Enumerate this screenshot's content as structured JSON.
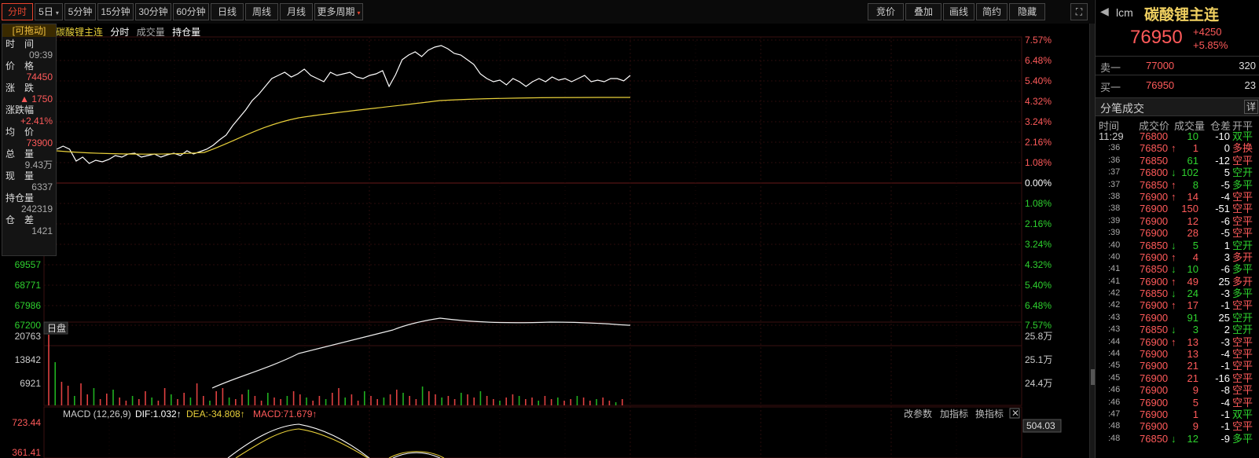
{
  "toolbar": {
    "left": [
      {
        "label": "分时",
        "active": true
      },
      {
        "label": "5日",
        "caret": "▾"
      },
      {
        "label": "5分钟"
      },
      {
        "label": "15分钟"
      },
      {
        "label": "30分钟"
      },
      {
        "label": "60分钟"
      },
      {
        "label": "日线"
      },
      {
        "label": "周线"
      },
      {
        "label": "月线"
      },
      {
        "label": "更多周期",
        "caret": "▾"
      }
    ],
    "right": [
      {
        "label": "竞价",
        "caret": "▾"
      },
      {
        "label": "叠加",
        "caret": "▾"
      },
      {
        "label": "画线"
      },
      {
        "label": "简约"
      },
      {
        "label": "隐藏",
        "caret": "▸▸"
      }
    ],
    "expand_icon": "⛶"
  },
  "legend": {
    "tag": "[可拖动]",
    "name": "碳酸锂主连",
    "items": [
      "分时",
      "成交量",
      "持仓量"
    ]
  },
  "hover": {
    "rows": [
      {
        "label": "时　间",
        "value": "09:39",
        "cls": "grey"
      },
      {
        "label": "价　格",
        "value": "74450",
        "cls": "red"
      },
      {
        "label": "涨　跌",
        "value": "▲ 1750",
        "cls": "red"
      },
      {
        "label": "涨跌幅",
        "value": "+2.41%",
        "cls": "red"
      },
      {
        "label": "均　价",
        "value": "73900",
        "cls": "red"
      },
      {
        "label": "总　量",
        "value": "9.43万",
        "cls": "grey"
      },
      {
        "label": "现　量",
        "value": "6337",
        "cls": "grey"
      },
      {
        "label": "持仓量",
        "value": "242319",
        "cls": "grey"
      },
      {
        "label": "仓　差",
        "value": "1421",
        "cls": "grey"
      }
    ]
  },
  "price_axis_left": [
    "69557",
    "68771",
    "67986",
    "67200"
  ],
  "pct_axis_right": [
    {
      "v": "7.57%",
      "c": "red"
    },
    {
      "v": "6.48%",
      "c": "red"
    },
    {
      "v": "5.40%",
      "c": "red"
    },
    {
      "v": "4.32%",
      "c": "red"
    },
    {
      "v": "3.24%",
      "c": "red"
    },
    {
      "v": "2.16%",
      "c": "red"
    },
    {
      "v": "1.08%",
      "c": "red"
    },
    {
      "v": "0.00%",
      "c": "white"
    },
    {
      "v": "1.08%",
      "c": "green"
    },
    {
      "v": "2.16%",
      "c": "green"
    },
    {
      "v": "3.24%",
      "c": "green"
    },
    {
      "v": "4.32%",
      "c": "green"
    },
    {
      "v": "5.40%",
      "c": "green"
    },
    {
      "v": "6.48%",
      "c": "green"
    },
    {
      "v": "7.57%",
      "c": "green"
    }
  ],
  "volume_panel": {
    "tag": "日盘",
    "left_axis": [
      "20763",
      "13842",
      "6921"
    ],
    "right_axis": [
      "25.8万",
      "25.1万",
      "24.4万"
    ]
  },
  "macd": {
    "title": "MACD (12,26,9)",
    "dif": "DIF:1.032↑",
    "dea": "DEA:-34.808↑",
    "macd": "MACD:71.679↑",
    "left_axis": [
      "723.44",
      "361.41"
    ],
    "right_value": "504.03",
    "buttons": [
      "改参数",
      "加指标",
      "换指标"
    ],
    "close": "✕"
  },
  "right_panel": {
    "code": "lcm",
    "name": "碳酸锂主连",
    "price": "76950",
    "change": "+4250",
    "change_pct": "+5.85%",
    "ask_label": "卖一",
    "ask_price": "77000",
    "ask_vol": "320",
    "bid_label": "买一",
    "bid_price": "76950",
    "bid_vol": "23",
    "trades_title": "分笔成交",
    "detail_btn": "详",
    "col_headers": [
      "时间",
      "成交价",
      "成交量",
      "仓差",
      "开平"
    ],
    "trades": [
      {
        "t": "11:29",
        "p": "76800",
        "a": "",
        "pc": "red",
        "v": "10",
        "vc": "green",
        "d": "-10",
        "k": "双平",
        "kc": "green"
      },
      {
        "t": ":36",
        "p": "76850",
        "a": "↑",
        "pc": "red",
        "v": "1",
        "vc": "red",
        "d": "0",
        "k": "多换",
        "kc": "red"
      },
      {
        "t": ":36",
        "p": "76850",
        "a": "",
        "pc": "red",
        "v": "61",
        "vc": "green",
        "d": "-12",
        "k": "空平",
        "kc": "red"
      },
      {
        "t": ":37",
        "p": "76800",
        "a": "↓",
        "pc": "red",
        "v": "102",
        "vc": "green",
        "d": "5",
        "k": "空开",
        "kc": "green"
      },
      {
        "t": ":37",
        "p": "76850",
        "a": "↑",
        "pc": "red",
        "v": "8",
        "vc": "green",
        "d": "-5",
        "k": "多平",
        "kc": "green"
      },
      {
        "t": ":38",
        "p": "76900",
        "a": "↑",
        "pc": "red",
        "v": "14",
        "vc": "red",
        "d": "-4",
        "k": "空平",
        "kc": "red"
      },
      {
        "t": ":38",
        "p": "76900",
        "a": "",
        "pc": "red",
        "v": "150",
        "vc": "red",
        "d": "-51",
        "k": "空平",
        "kc": "red"
      },
      {
        "t": ":39",
        "p": "76900",
        "a": "",
        "pc": "red",
        "v": "12",
        "vc": "red",
        "d": "-6",
        "k": "空平",
        "kc": "red"
      },
      {
        "t": ":39",
        "p": "76900",
        "a": "",
        "pc": "red",
        "v": "28",
        "vc": "red",
        "d": "-5",
        "k": "空平",
        "kc": "red"
      },
      {
        "t": ":40",
        "p": "76850",
        "a": "↓",
        "pc": "red",
        "v": "5",
        "vc": "green",
        "d": "1",
        "k": "空开",
        "kc": "green"
      },
      {
        "t": ":40",
        "p": "76900",
        "a": "↑",
        "pc": "red",
        "v": "4",
        "vc": "red",
        "d": "3",
        "k": "多开",
        "kc": "red"
      },
      {
        "t": ":41",
        "p": "76850",
        "a": "↓",
        "pc": "red",
        "v": "10",
        "vc": "green",
        "d": "-6",
        "k": "多平",
        "kc": "green"
      },
      {
        "t": ":41",
        "p": "76900",
        "a": "↑",
        "pc": "red",
        "v": "49",
        "vc": "red",
        "d": "25",
        "k": "多开",
        "kc": "red"
      },
      {
        "t": ":42",
        "p": "76850",
        "a": "↓",
        "pc": "red",
        "v": "24",
        "vc": "green",
        "d": "-3",
        "k": "多平",
        "kc": "green"
      },
      {
        "t": ":42",
        "p": "76900",
        "a": "↑",
        "pc": "red",
        "v": "17",
        "vc": "red",
        "d": "-1",
        "k": "空平",
        "kc": "red"
      },
      {
        "t": ":43",
        "p": "76900",
        "a": "",
        "pc": "red",
        "v": "91",
        "vc": "green",
        "d": "25",
        "k": "空开",
        "kc": "green"
      },
      {
        "t": ":43",
        "p": "76850",
        "a": "↓",
        "pc": "red",
        "v": "3",
        "vc": "green",
        "d": "2",
        "k": "空开",
        "kc": "green"
      },
      {
        "t": ":44",
        "p": "76900",
        "a": "↑",
        "pc": "red",
        "v": "13",
        "vc": "red",
        "d": "-3",
        "k": "空平",
        "kc": "red"
      },
      {
        "t": ":44",
        "p": "76900",
        "a": "",
        "pc": "red",
        "v": "13",
        "vc": "red",
        "d": "-4",
        "k": "空平",
        "kc": "red"
      },
      {
        "t": ":45",
        "p": "76900",
        "a": "",
        "pc": "red",
        "v": "21",
        "vc": "red",
        "d": "-1",
        "k": "空平",
        "kc": "red"
      },
      {
        "t": ":45",
        "p": "76900",
        "a": "",
        "pc": "red",
        "v": "21",
        "vc": "red",
        "d": "-16",
        "k": "空平",
        "kc": "red"
      },
      {
        "t": ":46",
        "p": "76900",
        "a": "",
        "pc": "red",
        "v": "9",
        "vc": "red",
        "d": "-8",
        "k": "空平",
        "kc": "red"
      },
      {
        "t": ":46",
        "p": "76900",
        "a": "",
        "pc": "red",
        "v": "5",
        "vc": "red",
        "d": "-4",
        "k": "空平",
        "kc": "red"
      },
      {
        "t": ":47",
        "p": "76900",
        "a": "",
        "pc": "red",
        "v": "1",
        "vc": "red",
        "d": "-1",
        "k": "双平",
        "kc": "green"
      },
      {
        "t": ":48",
        "p": "76900",
        "a": "",
        "pc": "red",
        "v": "9",
        "vc": "red",
        "d": "-1",
        "k": "空平",
        "kc": "red"
      },
      {
        "t": ":48",
        "p": "76850",
        "a": "↓",
        "pc": "red",
        "v": "12",
        "vc": "green",
        "d": "-9",
        "k": "多平",
        "kc": "green"
      }
    ]
  },
  "colors": {
    "up": "#ff5a5a",
    "down": "#2ed12e",
    "avg": "#e8d03a",
    "price": "#ffffff",
    "grid": "#2a2a2a",
    "grid_dash": "#3a0f0f"
  }
}
